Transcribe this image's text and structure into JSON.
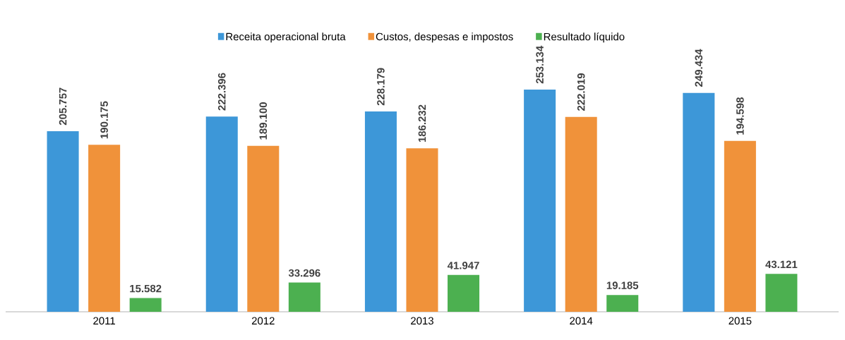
{
  "chart_data": {
    "type": "bar",
    "categories": [
      "2011",
      "2012",
      "2013",
      "2014",
      "2015"
    ],
    "series": [
      {
        "name": "Receita operacional bruta",
        "color": "#3d97d8",
        "values": [
          205757,
          222396,
          228179,
          253134,
          249434
        ],
        "value_labels": [
          "205.757",
          "222.396",
          "228.179",
          "253.134",
          "249.434"
        ]
      },
      {
        "name": "Custos, despesas e impostos",
        "color": "#f0923a",
        "values": [
          190175,
          189100,
          186232,
          222019,
          194598
        ],
        "value_labels": [
          "190.175",
          "189.100",
          "186.232",
          "222.019",
          "194.598"
        ]
      },
      {
        "name": "Resultado  líquido",
        "color": "#4cb050",
        "values": [
          15582,
          33296,
          41947,
          19185,
          43121
        ],
        "value_labels": [
          "15.582",
          "33.296",
          "41.947",
          "19.185",
          "43.121"
        ]
      }
    ],
    "legend": "top",
    "grid": false
  }
}
